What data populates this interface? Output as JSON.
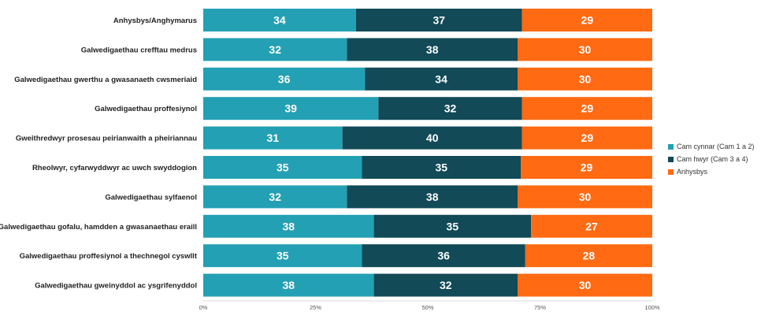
{
  "chart_data": {
    "type": "bar",
    "orientation": "horizontal",
    "stacked": true,
    "percent_scale": true,
    "categories": [
      "Anhysbys/Anghymarus",
      "Galwedigaethau crefftau medrus",
      "Galwedigaethau gwerthu a gwasanaeth cwsmeriaid",
      "Galwedigaethau proffesiynol",
      "Gweithredwyr prosesau peirianwaith a pheiriannau",
      "Rheolwyr, cyfarwyddwyr ac uwch swyddogion",
      "Galwedigaethau sylfaenol",
      "Galwedigaethau gofalu, hamdden a gwasanaethau eraill",
      "Galwedigaethau proffesiynol a thechnegol cyswllt",
      "Galwedigaethau gweinyddol ac ysgrifenyddol"
    ],
    "series": [
      {
        "name": "Cam cynnar (Cam 1 a 2)",
        "color": "#24a0b4",
        "values": [
          34,
          32,
          36,
          39,
          31,
          35,
          32,
          38,
          35,
          38
        ]
      },
      {
        "name": "Cam hwyr (Cam 3 a 4)",
        "color": "#124a57",
        "values": [
          37,
          38,
          34,
          32,
          40,
          35,
          38,
          35,
          36,
          32
        ]
      },
      {
        "name": "Anhysbys",
        "color": "#ff6a13",
        "values": [
          29,
          30,
          30,
          29,
          29,
          29,
          30,
          27,
          28,
          30
        ]
      }
    ],
    "x_ticks": [
      "0%",
      "25%",
      "50%",
      "75%",
      "100%"
    ],
    "xlim": [
      0,
      100
    ],
    "grid": false,
    "legend_position": "right"
  }
}
